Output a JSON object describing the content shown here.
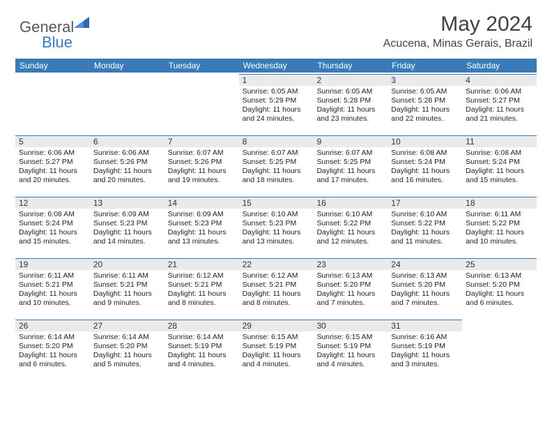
{
  "brand": {
    "name1": "General",
    "name2": "Blue"
  },
  "title": "May 2024",
  "location": "Acucena, Minas Gerais, Brazil",
  "colors": {
    "header_bg": "#3a7ab8",
    "date_bg": "#eaeaea",
    "text": "#222222",
    "title_text": "#404040"
  },
  "dayNames": [
    "Sunday",
    "Monday",
    "Tuesday",
    "Wednesday",
    "Thursday",
    "Friday",
    "Saturday"
  ],
  "leadingBlanks": 3,
  "days": [
    {
      "n": 1,
      "sr": "6:05 AM",
      "ss": "5:29 PM",
      "dl": "11 hours and 24 minutes."
    },
    {
      "n": 2,
      "sr": "6:05 AM",
      "ss": "5:28 PM",
      "dl": "11 hours and 23 minutes."
    },
    {
      "n": 3,
      "sr": "6:05 AM",
      "ss": "5:28 PM",
      "dl": "11 hours and 22 minutes."
    },
    {
      "n": 4,
      "sr": "6:06 AM",
      "ss": "5:27 PM",
      "dl": "11 hours and 21 minutes."
    },
    {
      "n": 5,
      "sr": "6:06 AM",
      "ss": "5:27 PM",
      "dl": "11 hours and 20 minutes."
    },
    {
      "n": 6,
      "sr": "6:06 AM",
      "ss": "5:26 PM",
      "dl": "11 hours and 20 minutes."
    },
    {
      "n": 7,
      "sr": "6:07 AM",
      "ss": "5:26 PM",
      "dl": "11 hours and 19 minutes."
    },
    {
      "n": 8,
      "sr": "6:07 AM",
      "ss": "5:25 PM",
      "dl": "11 hours and 18 minutes."
    },
    {
      "n": 9,
      "sr": "6:07 AM",
      "ss": "5:25 PM",
      "dl": "11 hours and 17 minutes."
    },
    {
      "n": 10,
      "sr": "6:08 AM",
      "ss": "5:24 PM",
      "dl": "11 hours and 16 minutes."
    },
    {
      "n": 11,
      "sr": "6:08 AM",
      "ss": "5:24 PM",
      "dl": "11 hours and 15 minutes."
    },
    {
      "n": 12,
      "sr": "6:08 AM",
      "ss": "5:24 PM",
      "dl": "11 hours and 15 minutes."
    },
    {
      "n": 13,
      "sr": "6:09 AM",
      "ss": "5:23 PM",
      "dl": "11 hours and 14 minutes."
    },
    {
      "n": 14,
      "sr": "6:09 AM",
      "ss": "5:23 PM",
      "dl": "11 hours and 13 minutes."
    },
    {
      "n": 15,
      "sr": "6:10 AM",
      "ss": "5:23 PM",
      "dl": "11 hours and 13 minutes."
    },
    {
      "n": 16,
      "sr": "6:10 AM",
      "ss": "5:22 PM",
      "dl": "11 hours and 12 minutes."
    },
    {
      "n": 17,
      "sr": "6:10 AM",
      "ss": "5:22 PM",
      "dl": "11 hours and 11 minutes."
    },
    {
      "n": 18,
      "sr": "6:11 AM",
      "ss": "5:22 PM",
      "dl": "11 hours and 10 minutes."
    },
    {
      "n": 19,
      "sr": "6:11 AM",
      "ss": "5:21 PM",
      "dl": "11 hours and 10 minutes."
    },
    {
      "n": 20,
      "sr": "6:11 AM",
      "ss": "5:21 PM",
      "dl": "11 hours and 9 minutes."
    },
    {
      "n": 21,
      "sr": "6:12 AM",
      "ss": "5:21 PM",
      "dl": "11 hours and 8 minutes."
    },
    {
      "n": 22,
      "sr": "6:12 AM",
      "ss": "5:21 PM",
      "dl": "11 hours and 8 minutes."
    },
    {
      "n": 23,
      "sr": "6:13 AM",
      "ss": "5:20 PM",
      "dl": "11 hours and 7 minutes."
    },
    {
      "n": 24,
      "sr": "6:13 AM",
      "ss": "5:20 PM",
      "dl": "11 hours and 7 minutes."
    },
    {
      "n": 25,
      "sr": "6:13 AM",
      "ss": "5:20 PM",
      "dl": "11 hours and 6 minutes."
    },
    {
      "n": 26,
      "sr": "6:14 AM",
      "ss": "5:20 PM",
      "dl": "11 hours and 6 minutes."
    },
    {
      "n": 27,
      "sr": "6:14 AM",
      "ss": "5:20 PM",
      "dl": "11 hours and 5 minutes."
    },
    {
      "n": 28,
      "sr": "6:14 AM",
      "ss": "5:19 PM",
      "dl": "11 hours and 4 minutes."
    },
    {
      "n": 29,
      "sr": "6:15 AM",
      "ss": "5:19 PM",
      "dl": "11 hours and 4 minutes."
    },
    {
      "n": 30,
      "sr": "6:15 AM",
      "ss": "5:19 PM",
      "dl": "11 hours and 4 minutes."
    },
    {
      "n": 31,
      "sr": "6:16 AM",
      "ss": "5:19 PM",
      "dl": "11 hours and 3 minutes."
    }
  ],
  "labels": {
    "sunrise": "Sunrise:",
    "sunset": "Sunset:",
    "daylight": "Daylight:"
  }
}
